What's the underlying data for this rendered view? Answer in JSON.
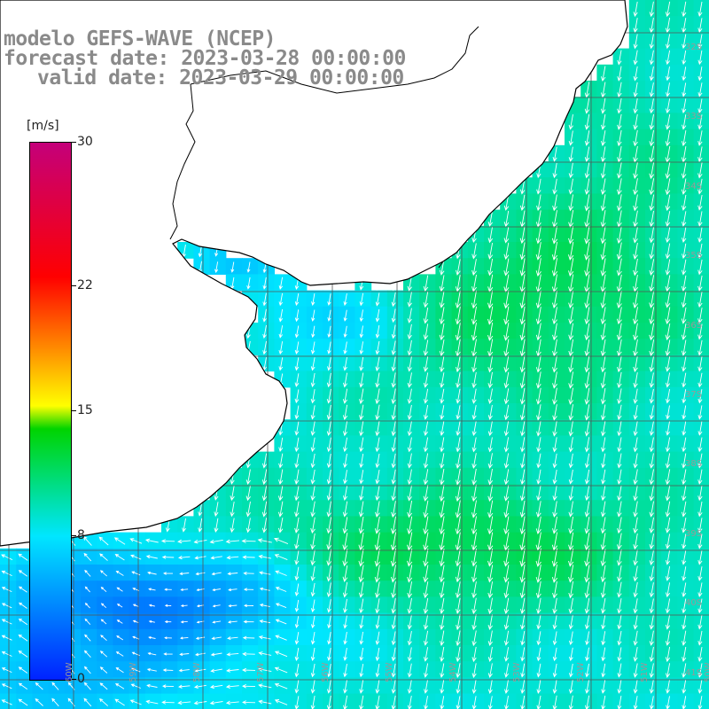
{
  "title": {
    "line1": "modelo GEFS-WAVE (NCEP)",
    "line2": "forecast date: 2023-03-28 00:00:00",
    "line3": "valid date: 2023-03-29 00:00:00"
  },
  "colorbar": {
    "unit": "[m/s]",
    "min": 0,
    "max": 30,
    "ticks": [
      {
        "label": "30",
        "value": 30
      },
      {
        "label": "22",
        "value": 22
      },
      {
        "label": "15",
        "value": 15
      },
      {
        "label": "8",
        "value": 8
      },
      {
        "label": "0",
        "value": 0
      }
    ],
    "colors": [
      "#0022ff",
      "#00e6ff",
      "#00d400",
      "#ffff00",
      "#ff8800",
      "#ff0000",
      "#c4007a"
    ]
  },
  "lat_labels": [
    {
      "label": "32S",
      "lat": -32
    },
    {
      "label": "33S",
      "lat": -33
    },
    {
      "label": "34S",
      "lat": -34
    },
    {
      "label": "35S",
      "lat": -35
    },
    {
      "label": "36S",
      "lat": -36
    },
    {
      "label": "37S",
      "lat": -37
    },
    {
      "label": "38S",
      "lat": -38
    },
    {
      "label": "39S",
      "lat": -39
    },
    {
      "label": "40S",
      "lat": -40
    },
    {
      "label": "41S",
      "lat": -41
    }
  ],
  "lon_labels": [
    {
      "label": "60W",
      "lon": -60
    },
    {
      "label": "59W",
      "lon": -59
    },
    {
      "label": "58W",
      "lon": -58
    },
    {
      "label": "57W",
      "lon": -57
    },
    {
      "label": "56W",
      "lon": -56
    },
    {
      "label": "55W",
      "lon": -55
    },
    {
      "label": "54W",
      "lon": -54
    },
    {
      "label": "53W",
      "lon": -53
    },
    {
      "label": "52W",
      "lon": -52
    },
    {
      "label": "51W",
      "lon": -51
    },
    {
      "label": "50W",
      "lon": -50
    }
  ],
  "map_extent": {
    "lon_min": -61.1,
    "lon_max": -50.0,
    "lat_min": -41.5,
    "lat_max": -31.3
  },
  "colors": {
    "land": "#ffffff",
    "coastline": "#000000",
    "grid": "#555555",
    "arrows": "#ffffff",
    "title": "#8a8a8a"
  }
}
